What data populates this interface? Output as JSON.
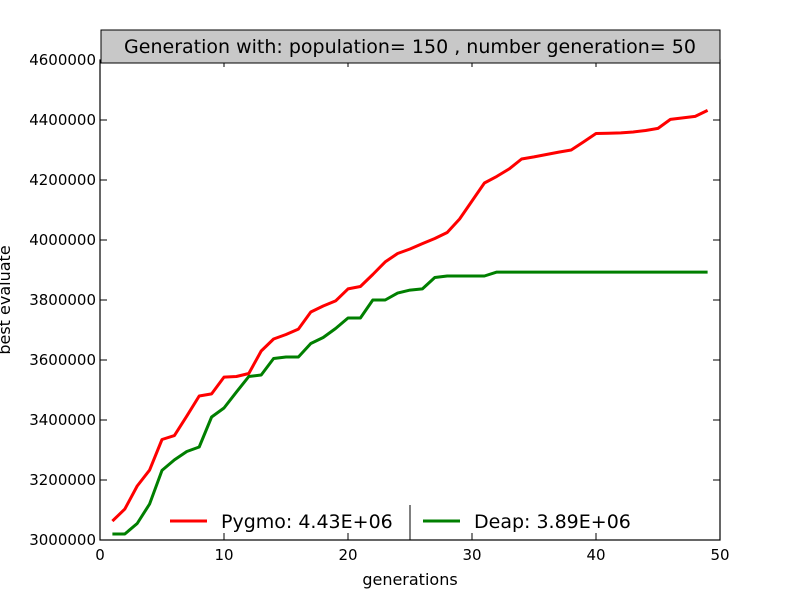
{
  "chart_data": {
    "type": "line",
    "title": "Generation with: population= 150 , number generation= 50",
    "xlabel": "generations",
    "ylabel": "best evaluate",
    "xlim": [
      0,
      50
    ],
    "ylim": [
      3000000,
      4600000
    ],
    "xticks": [
      0,
      10,
      20,
      30,
      40,
      50
    ],
    "yticks": [
      3000000,
      3200000,
      3400000,
      3600000,
      3800000,
      4000000,
      4200000,
      4400000,
      4600000
    ],
    "xtick_labels": [
      "0",
      "10",
      "20",
      "30",
      "40",
      "50"
    ],
    "ytick_labels": [
      "3000000",
      "3200000",
      "3400000",
      "3600000",
      "3800000",
      "4000000",
      "4200000",
      "4400000",
      "4600000"
    ],
    "grid": false,
    "legend_position": "lower-center",
    "x": [
      1,
      2,
      3,
      4,
      5,
      6,
      7,
      8,
      9,
      10,
      11,
      12,
      13,
      14,
      15,
      16,
      17,
      18,
      19,
      20,
      21,
      22,
      23,
      24,
      25,
      26,
      27,
      28,
      29,
      30,
      31,
      32,
      33,
      34,
      35,
      36,
      37,
      38,
      39,
      40,
      41,
      42,
      43,
      44,
      45,
      46,
      47,
      48,
      49
    ],
    "series": [
      {
        "name": "Pygmo: 4.43E+06",
        "color": "#ff0000",
        "values": [
          3063000,
          3103000,
          3180000,
          3233000,
          3335000,
          3348000,
          3413000,
          3480000,
          3487000,
          3543000,
          3545000,
          3555000,
          3630000,
          3670000,
          3685000,
          3703000,
          3760000,
          3780000,
          3797000,
          3837000,
          3845000,
          3885000,
          3927000,
          3955000,
          3970000,
          3988000,
          4005000,
          4025000,
          4070000,
          4130000,
          4190000,
          4212000,
          4237000,
          4270000,
          4277000,
          4285000,
          4293000,
          4300000,
          4327000,
          4355000,
          4356000,
          4357000,
          4360000,
          4365000,
          4372000,
          4402000,
          4407000,
          4412000,
          4432000
        ]
      },
      {
        "name": "Deap: 3.89E+06",
        "color": "#007f00",
        "values": [
          3020000,
          3020000,
          3055000,
          3120000,
          3232000,
          3267000,
          3295000,
          3310000,
          3410000,
          3440000,
          3493000,
          3545000,
          3550000,
          3605000,
          3610000,
          3610000,
          3655000,
          3675000,
          3705000,
          3740000,
          3740000,
          3800000,
          3800000,
          3823000,
          3833000,
          3837000,
          3875000,
          3880000,
          3880000,
          3880000,
          3880000,
          3893000,
          3893000,
          3893000,
          3893000,
          3893000,
          3893000,
          3893000,
          3893000,
          3893000,
          3893000,
          3893000,
          3893000,
          3893000,
          3893000,
          3893000,
          3893000,
          3893000,
          3893000
        ]
      }
    ]
  }
}
